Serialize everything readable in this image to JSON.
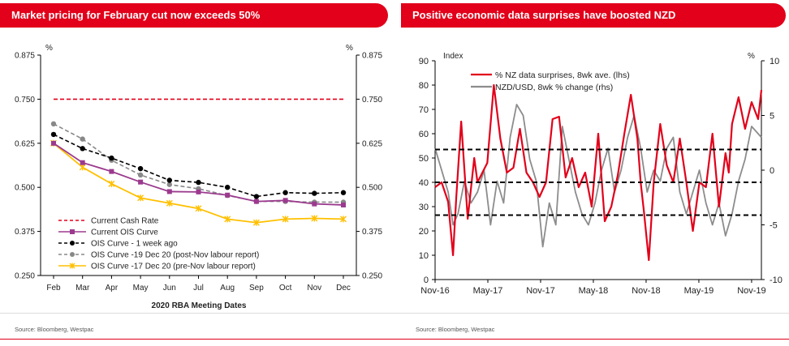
{
  "header_left": "Market pricing for February cut now exceeds 50%",
  "header_right": "Positive economic data surprises have boosted NZD",
  "source_left": "Source: Bloomberg, Westpac",
  "source_right": "Source: Bloomberg, Westpac",
  "colors": {
    "brand_red": "#e2001a"
  },
  "chart_data": [
    {
      "type": "line",
      "title": "Market pricing for February cut now exceeds 50%",
      "xlabel": "2020 RBA Meeting Dates",
      "ylabel_left": "%",
      "ylabel_right": "%",
      "ylim": [
        0.25,
        0.875
      ],
      "yticks": [
        "0.250",
        "0.375",
        "0.500",
        "0.625",
        "0.750",
        "0.875"
      ],
      "categories": [
        "Feb",
        "Mar",
        "Apr",
        "May",
        "Jun",
        "Jul",
        "Aug",
        "Sep",
        "Oct",
        "Nov",
        "Dec"
      ],
      "legend_position": "bottom-left",
      "series": [
        {
          "name": "Current Cash Rate",
          "color": "#e2001a",
          "style": "dash",
          "values": [
            0.75,
            0.75,
            0.75,
            0.75,
            0.75,
            0.75,
            0.75,
            0.75,
            0.75,
            0.75,
            0.75
          ]
        },
        {
          "name": "Current OIS Curve",
          "color": "#9b3a8e",
          "style": "solid",
          "marker": "square",
          "values": [
            0.625,
            0.57,
            0.545,
            0.515,
            0.488,
            0.487,
            0.478,
            0.46,
            0.463,
            0.453,
            0.45
          ]
        },
        {
          "name": "OIS Curve - 1 week ago",
          "color": "#000000",
          "style": "dash",
          "marker": "circle",
          "values": [
            0.65,
            0.61,
            0.583,
            0.553,
            0.52,
            0.514,
            0.5,
            0.474,
            0.485,
            0.483,
            0.485
          ]
        },
        {
          "name": "OIS Curve -19 Dec 20 (post-Nov labour report)",
          "color": "#888888",
          "style": "dash",
          "marker": "circle",
          "values": [
            0.68,
            0.637,
            0.577,
            0.535,
            0.508,
            0.496,
            0.477,
            0.46,
            0.46,
            0.458,
            0.458
          ]
        },
        {
          "name": "OIS Curve -17 Dec 20 (pre-Nov labour report)",
          "color": "#ffc000",
          "style": "solid",
          "marker": "star",
          "values": [
            0.625,
            0.557,
            0.51,
            0.47,
            0.455,
            0.44,
            0.41,
            0.4,
            0.41,
            0.412,
            0.41
          ]
        }
      ]
    },
    {
      "type": "line",
      "title": "Positive economic data surprises have boosted NZD",
      "ylabel_left": "Index",
      "ylabel_right": "%",
      "ylim_left": [
        0,
        90
      ],
      "ylim_right": [
        -10,
        10
      ],
      "yticks_left": [
        "0",
        "10",
        "20",
        "30",
        "40",
        "50",
        "60",
        "70",
        "80",
        "90"
      ],
      "yticks_right": [
        "-10",
        "-5",
        "0",
        "5",
        "10"
      ],
      "x_tick_labels": [
        "Nov-16",
        "May-17",
        "Nov-17",
        "May-18",
        "Nov-18",
        "May-19",
        "Nov-19"
      ],
      "reference_lines_lhs": [
        26.5,
        40,
        53.5
      ],
      "legend_position": "top-left",
      "series": [
        {
          "name": "% NZ data surprises, 8wk ave. (lhs)",
          "color": "#e2001a",
          "axis": "left",
          "x": [
            0,
            0.02,
            0.04,
            0.055,
            0.065,
            0.08,
            0.1,
            0.12,
            0.13,
            0.145,
            0.16,
            0.18,
            0.2,
            0.22,
            0.24,
            0.26,
            0.28,
            0.3,
            0.32,
            0.34,
            0.36,
            0.38,
            0.4,
            0.42,
            0.44,
            0.46,
            0.48,
            0.5,
            0.52,
            0.54,
            0.56,
            0.58,
            0.6,
            0.62,
            0.63,
            0.64,
            0.655,
            0.67,
            0.69,
            0.71,
            0.73,
            0.75,
            0.77,
            0.79,
            0.81,
            0.83,
            0.85,
            0.87,
            0.89,
            0.9,
            0.91,
            0.93,
            0.95,
            0.97,
            0.99,
            1.0
          ],
          "y": [
            38,
            40,
            32,
            10,
            34,
            65,
            25,
            50,
            40,
            44,
            48,
            80,
            58,
            44,
            46,
            62,
            44,
            40,
            34,
            40,
            66,
            67,
            42,
            50,
            38,
            44,
            30,
            60,
            24,
            30,
            43,
            60,
            76,
            58,
            40,
            28,
            8,
            40,
            64,
            47,
            40,
            58,
            40,
            20,
            40,
            38,
            60,
            30,
            52,
            44,
            64,
            75,
            62,
            73,
            66,
            78
          ]
        },
        {
          "name": "NZD/USD, 8wk % change (rhs)",
          "color": "#8c8c8c",
          "axis": "right",
          "x": [
            0,
            0.02,
            0.04,
            0.055,
            0.07,
            0.09,
            0.11,
            0.13,
            0.15,
            0.17,
            0.19,
            0.21,
            0.23,
            0.25,
            0.27,
            0.29,
            0.31,
            0.33,
            0.35,
            0.37,
            0.39,
            0.41,
            0.43,
            0.45,
            0.47,
            0.49,
            0.51,
            0.53,
            0.55,
            0.57,
            0.59,
            0.61,
            0.63,
            0.65,
            0.67,
            0.69,
            0.71,
            0.73,
            0.75,
            0.77,
            0.79,
            0.81,
            0.83,
            0.85,
            0.87,
            0.89,
            0.91,
            0.93,
            0.95,
            0.97,
            1.0
          ],
          "y": [
            2,
            0,
            -2,
            -5,
            -4,
            -1,
            -3,
            -2,
            0,
            -5,
            -1,
            -3,
            3,
            6,
            5,
            1,
            -1,
            -7,
            -3,
            -5,
            4,
            1,
            -2,
            -4,
            -5,
            -3,
            0,
            2,
            -2,
            0,
            3,
            5,
            2,
            -2,
            0,
            -1,
            2,
            3,
            -2,
            -4,
            -2,
            0,
            -3,
            -5,
            -3,
            -6,
            -4,
            -1,
            1,
            4,
            3
          ]
        }
      ]
    }
  ]
}
